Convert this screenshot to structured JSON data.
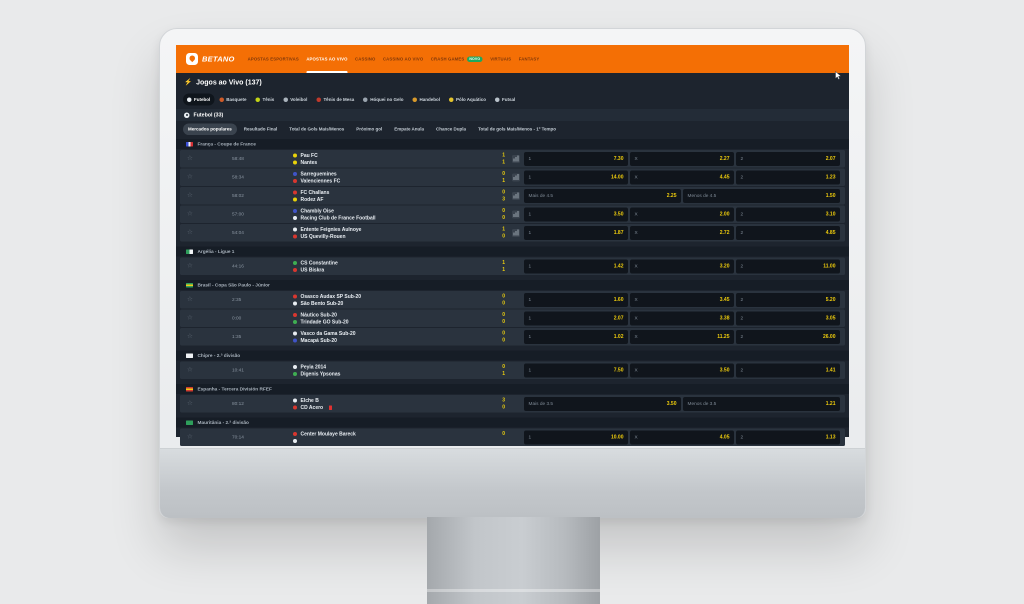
{
  "icons": {
    "favorite_star": "☆",
    "lightning": "⚡"
  },
  "colors": {
    "brand_orange": "#f46f05",
    "odds_yellow": "#f0cd0c",
    "score_yellow": "#eccf0e",
    "badge_green": "#1fa85e"
  },
  "nav": {
    "logo": "BETANO",
    "items": [
      {
        "label": "APOSTAS ESPORTIVAS",
        "active": false
      },
      {
        "label": "APOSTAS AO VIVO",
        "active": true
      },
      {
        "label": "CASSINO",
        "active": false
      },
      {
        "label": "CASSINO AO VIVO",
        "active": false
      },
      {
        "label": "CRASH GAMES",
        "active": false,
        "badge": "NOVO"
      },
      {
        "label": "VIRTUAIS",
        "active": false
      },
      {
        "label": "FANTASY",
        "active": false
      }
    ]
  },
  "page": {
    "title": "Jogos ao Vivo (137)",
    "section_title": "Futebol (33)",
    "sport_tabs": [
      {
        "label": "Futebol",
        "active": true,
        "color": "#e9eef3"
      },
      {
        "label": "Basquete",
        "active": false,
        "color": "#cf5b28"
      },
      {
        "label": "Tênis",
        "active": false,
        "color": "#c3d416"
      },
      {
        "label": "Voleibol",
        "active": false,
        "color": "#aab3bc"
      },
      {
        "label": "Tênis de Mesa",
        "active": false,
        "color": "#c0392b"
      },
      {
        "label": "Hóquei no Gelo",
        "active": false,
        "color": "#9aa4ae"
      },
      {
        "label": "Handebol",
        "active": false,
        "color": "#d89a2b"
      },
      {
        "label": "Pólo Aquático",
        "active": false,
        "color": "#e3c32c"
      },
      {
        "label": "Futsal",
        "active": false,
        "color": "#b9c2ca"
      }
    ],
    "market_tabs": [
      {
        "label": "Mercados populares",
        "active": true
      },
      {
        "label": "Resultado Final",
        "active": false
      },
      {
        "label": "Total de Gols Mais/Menos",
        "active": false
      },
      {
        "label": "Próximo gol",
        "active": false
      },
      {
        "label": "Empate Anula",
        "active": false
      },
      {
        "label": "Chance Dupla",
        "active": false
      },
      {
        "label": "Total de gols Mais/Menos - 1º Tempo",
        "active": false
      }
    ]
  },
  "sections": [
    {
      "league": "França - Coupe de France",
      "flag": {
        "type": "v",
        "colors": [
          "#3a4fd8",
          "#eef1f4",
          "#d53034"
        ]
      },
      "rows": [
        {
          "time": "58:48",
          "home": {
            "name": "Pau FC",
            "color": "#e8d20a"
          },
          "away": {
            "name": "Nantes",
            "color": "#e8d20a"
          },
          "score": [
            "1",
            "1"
          ],
          "stats": true,
          "odds": [
            {
              "label": "1",
              "value": "7.30"
            },
            {
              "label": "X",
              "value": "2.27"
            },
            {
              "label": "2",
              "value": "2.07"
            }
          ]
        },
        {
          "time": "58:34",
          "home": {
            "name": "Sarreguemines",
            "color": "#4054c7"
          },
          "away": {
            "name": "Valenciennes FC",
            "color": "#d8372f"
          },
          "score": [
            "0",
            "1"
          ],
          "stats": true,
          "odds": [
            {
              "label": "1",
              "value": "14.00"
            },
            {
              "label": "X",
              "value": "4.45"
            },
            {
              "label": "2",
              "value": "1.23"
            }
          ]
        },
        {
          "time": "58:02",
          "home": {
            "name": "FC Challans",
            "color": "#d8372f"
          },
          "away": {
            "name": "Rodez AF",
            "color": "#e8d20a"
          },
          "score": [
            "0",
            "3"
          ],
          "stats": true,
          "odds": [
            {
              "label": "Mais de 4.5",
              "value": "2.25"
            },
            {
              "label": "Menos de 4.5",
              "value": "1.50"
            }
          ]
        },
        {
          "time": "57:00",
          "home": {
            "name": "Chambly Oise",
            "color": "#4054c7"
          },
          "away": {
            "name": "Racing Club de France Football",
            "color": "#e8edf2"
          },
          "score": [
            "0",
            "0"
          ],
          "stats": true,
          "odds": [
            {
              "label": "1",
              "value": "3.50"
            },
            {
              "label": "X",
              "value": "2.00"
            },
            {
              "label": "2",
              "value": "3.10"
            }
          ]
        },
        {
          "time": "54:04",
          "home": {
            "name": "Entente Feignies Aulnoye",
            "color": "#e8edf2"
          },
          "away": {
            "name": "US Quevilly-Rouen",
            "color": "#d8372f"
          },
          "score": [
            "1",
            "0"
          ],
          "stats": true,
          "odds": [
            {
              "label": "1",
              "value": "1.87"
            },
            {
              "label": "X",
              "value": "2.72"
            },
            {
              "label": "2",
              "value": "4.85"
            }
          ]
        }
      ]
    },
    {
      "league": "Argélia - Ligue 1",
      "flag": {
        "type": "v",
        "colors": [
          "#2e9e5b",
          "#f2f5f8"
        ]
      },
      "rows": [
        {
          "time": "44:16",
          "home": {
            "name": "CS Constantine",
            "color": "#3fae52"
          },
          "away": {
            "name": "US Biskra",
            "color": "#d8372f"
          },
          "score": [
            "1",
            "1"
          ],
          "stats": false,
          "odds": [
            {
              "label": "1",
              "value": "1.42"
            },
            {
              "label": "X",
              "value": "3.20"
            },
            {
              "label": "2",
              "value": "11.00"
            }
          ]
        }
      ]
    },
    {
      "league": "Brasil - Copa São Paulo - Júnior",
      "flag": {
        "type": "h",
        "colors": [
          "#2e9e5b",
          "#f2c818",
          "#2e9e5b"
        ]
      },
      "rows": [
        {
          "time": "2:35",
          "home": {
            "name": "Osasco Audax SP Sub-20",
            "color": "#d8372f"
          },
          "away": {
            "name": "São Bento Sub-20",
            "color": "#e8edf2"
          },
          "score": [
            "0",
            "0"
          ],
          "stats": false,
          "odds": [
            {
              "label": "1",
              "value": "1.60"
            },
            {
              "label": "X",
              "value": "3.45"
            },
            {
              "label": "2",
              "value": "5.20"
            }
          ]
        },
        {
          "time": "0:00",
          "home": {
            "name": "Náutico Sub-20",
            "color": "#d8372f"
          },
          "away": {
            "name": "Trindade GO Sub-20",
            "color": "#3fae52"
          },
          "score": [
            "0",
            "0"
          ],
          "stats": false,
          "odds": [
            {
              "label": "1",
              "value": "2.07"
            },
            {
              "label": "X",
              "value": "3.38"
            },
            {
              "label": "2",
              "value": "3.05"
            }
          ]
        },
        {
          "time": "1:35",
          "home": {
            "name": "Vasco da Gama Sub-20",
            "color": "#e8edf2"
          },
          "away": {
            "name": "Macapá Sub-20",
            "color": "#4054c7"
          },
          "score": [
            "0",
            "0"
          ],
          "stats": false,
          "odds": [
            {
              "label": "1",
              "value": "1.02"
            },
            {
              "label": "X",
              "value": "11.25"
            },
            {
              "label": "2",
              "value": "26.00"
            }
          ]
        }
      ]
    },
    {
      "league": "Chipre - 2.ª divisão",
      "flag": {
        "type": "solid",
        "colors": [
          "#eef1f4"
        ]
      },
      "rows": [
        {
          "time": "10:41",
          "home": {
            "name": "Peyia 2014",
            "color": "#e8edf2"
          },
          "away": {
            "name": "Digenis Ypsonas",
            "color": "#3fae52"
          },
          "score": [
            "0",
            "1"
          ],
          "stats": false,
          "odds": [
            {
              "label": "1",
              "value": "7.50"
            },
            {
              "label": "X",
              "value": "3.50"
            },
            {
              "label": "2",
              "value": "1.41"
            }
          ]
        }
      ]
    },
    {
      "league": "Espanha - Tercera División RFEF",
      "flag": {
        "type": "h",
        "colors": [
          "#d03b2d",
          "#f2c818",
          "#d03b2d"
        ]
      },
      "rows": [
        {
          "time": "80:12",
          "home": {
            "name": "Elche B",
            "color": "#e8edf2"
          },
          "away": {
            "name": "CD Acero",
            "color": "#d8372f",
            "red_card": true
          },
          "score": [
            "3",
            "0"
          ],
          "stats": false,
          "odds": [
            {
              "label": "Mais de 3.5",
              "value": "3.50"
            },
            {
              "label": "Menos de 3.5",
              "value": "1.21"
            }
          ]
        }
      ]
    },
    {
      "league": "Mauritânia - 2.ª divisão",
      "flag": {
        "type": "solid",
        "colors": [
          "#2e9e5b"
        ]
      },
      "rows": [
        {
          "time": "70:14",
          "home": {
            "name": "Center Moulaye Bareck",
            "color": "#d8372f"
          },
          "away": {
            "name": "",
            "color": "#e8edf2"
          },
          "score": [
            "0",
            ""
          ],
          "stats": false,
          "odds": [
            {
              "label": "1",
              "value": "10.00"
            },
            {
              "label": "X",
              "value": "4.05"
            },
            {
              "label": "2",
              "value": "1.13"
            }
          ]
        }
      ]
    }
  ]
}
